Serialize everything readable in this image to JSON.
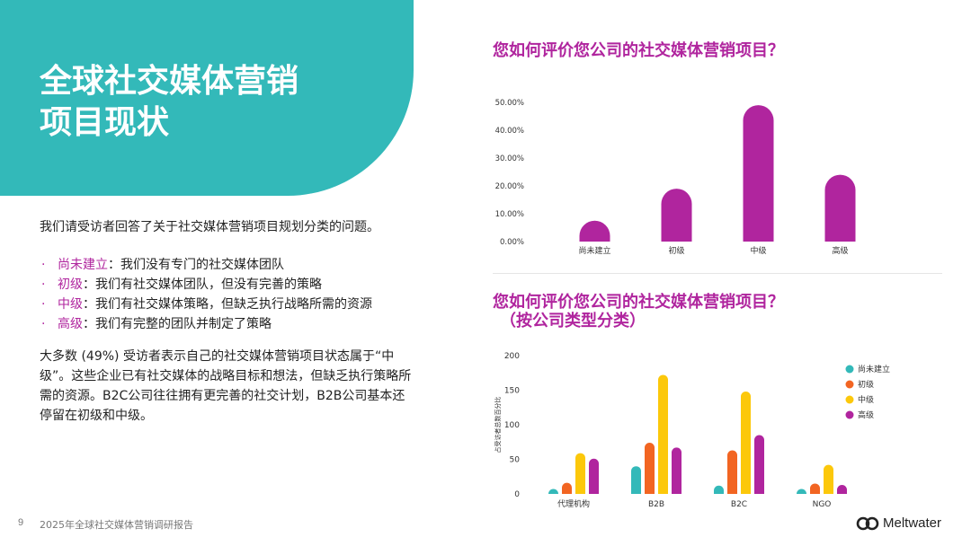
{
  "slide": {
    "title_line1": "全球社交媒体营销",
    "title_line2": "项目现状",
    "intro": "我们请受访者回答了关于社交媒体营销项目规划分类的问题。",
    "levels": [
      {
        "term": "尚未建立",
        "desc": "：我们没有专门的社交媒体团队"
      },
      {
        "term": "初级",
        "desc": "：我们有社交媒体团队，但没有完善的策略"
      },
      {
        "term": "中级",
        "desc": "：我们有社交媒体策略，但缺乏执行战略所需的资源"
      },
      {
        "term": "高级",
        "desc": "：我们有完整的团队并制定了策略"
      }
    ],
    "bullet_glyph": "·",
    "summary": "大多数 (49%) 受访者表示自己的社交媒体营销项目状态属于“中级”。这些企业已有社交媒体的战略目标和想法，但缺乏执行策略所需的资源。B2C公司往往拥有更完善的社交计划，B2B公司基本还停留在初级和中级。"
  },
  "footer": {
    "page_number": "9",
    "report": "2025年全球社交媒体营销调研报告",
    "brand": "Meltwater"
  },
  "chart1": {
    "title": "您如何评价您公司的社交媒体营销项目？"
  },
  "chart2": {
    "title": "您如何评价您公司的社交媒体营销项目？",
    "subtitle": "（按公司类型分类）"
  },
  "colors": {
    "teal": "#33b9b9",
    "magenta": "#b0259e",
    "orange": "#f26522",
    "yellow": "#fcc80b"
  },
  "chart_data": [
    {
      "type": "bar",
      "title": "您如何评价您公司的社交媒体营销项目？",
      "categories": [
        "尚未建立",
        "初级",
        "中级",
        "高级"
      ],
      "values": [
        7.5,
        19,
        49,
        24
      ],
      "unit": "%",
      "ylim": [
        0,
        50
      ],
      "yticks": [
        "0.00%",
        "10.00%",
        "20.00%",
        "30.00%",
        "40.00%",
        "50.00%"
      ],
      "color": "#b0259e",
      "grid": false
    },
    {
      "type": "bar",
      "title": "您如何评价您公司的社交媒体营销项目？",
      "subtitle": "（按公司类型分类）",
      "categories": [
        "代理机构",
        "B2B",
        "B2C",
        "NGO"
      ],
      "ylabel": "占受访者总数百分比",
      "ylim": [
        0,
        200
      ],
      "yticks": [
        "0",
        "50",
        "100",
        "150",
        "200"
      ],
      "legend_position": "right",
      "grid": false,
      "series": [
        {
          "name": "尚未建立",
          "color": "#33b9b9",
          "values": [
            5,
            40,
            12,
            3
          ]
        },
        {
          "name": "初级",
          "color": "#f26522",
          "values": [
            16,
            74,
            63,
            15
          ]
        },
        {
          "name": "中级",
          "color": "#fcc80b",
          "values": [
            59,
            172,
            148,
            42
          ]
        },
        {
          "name": "高级",
          "color": "#b0259e",
          "values": [
            51,
            67,
            85,
            13
          ]
        }
      ]
    }
  ]
}
